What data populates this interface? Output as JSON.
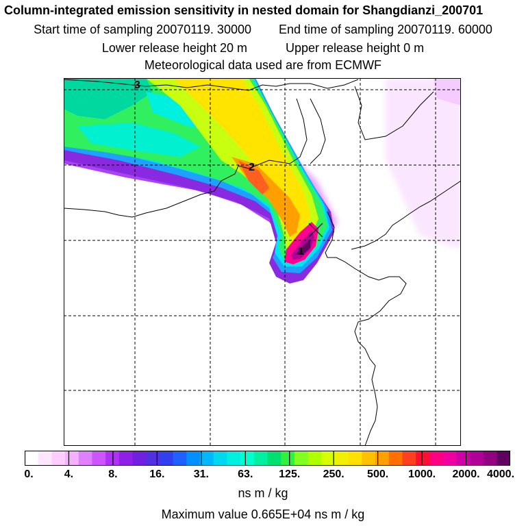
{
  "header": {
    "title": "Column-integrated emission sensitivity in nested domain for Shangdianzi_200701",
    "start_label": "Start time of sampling 20070119. 30000",
    "end_label": "End time of sampling 20070119. 60000",
    "lower_label": "Lower release height   20 m",
    "upper_label": "Upper release height    0 m",
    "met_label": "Meteorological data used are from ECMWF"
  },
  "map": {
    "markers": [
      {
        "label": "1"
      },
      {
        "label": "2"
      },
      {
        "label": "3"
      }
    ]
  },
  "colorbar": {
    "ticks": [
      "0.",
      "4.",
      "8.",
      "16.",
      "31.",
      "63.",
      "125.",
      "250.",
      "500.",
      "1000.",
      "2000.",
      "4000."
    ],
    "units": "ns m / kg",
    "colors": [
      "#ffffff",
      "#ffe6ff",
      "#ffccff",
      "#f5b0ff",
      "#e080ff",
      "#cc55ff",
      "#b030f5",
      "#9020e8",
      "#7020e0",
      "#5030e0",
      "#3040f0",
      "#2060ff",
      "#0090ff",
      "#00b8ff",
      "#00d8f0",
      "#00f0e0",
      "#00ffcc",
      "#00f0a0",
      "#00e070",
      "#30f040",
      "#80ff20",
      "#b0ff00",
      "#d8ff00",
      "#f0f000",
      "#ffe000",
      "#ffc000",
      "#ffa000",
      "#ff7000",
      "#ff4020",
      "#ff1030",
      "#ff0080",
      "#f000a0",
      "#d000a8",
      "#b00098",
      "#900080",
      "#600060"
    ]
  },
  "footer": {
    "max_label": "Maximum value  0.665E+04 ns m / kg"
  }
}
